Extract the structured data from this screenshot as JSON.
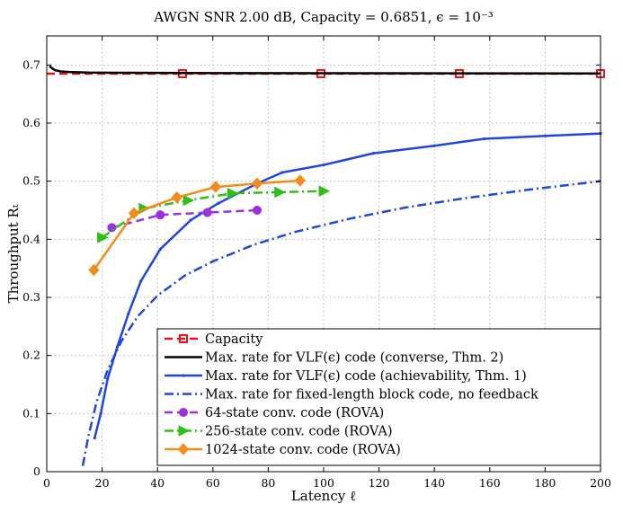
{
  "chart_data": {
    "type": "line",
    "title": "AWGN SNR 2.00 dB, Capacity = 0.6851, ϵ = 10⁻³",
    "xlabel": "Latency ℓ",
    "ylabel": "Throughput Rₜ",
    "xlim": [
      0,
      200
    ],
    "ylim": [
      0,
      0.75
    ],
    "xticks": [
      "0",
      "20",
      "40",
      "60",
      "80",
      "100",
      "120",
      "140",
      "160",
      "180",
      "200"
    ],
    "yticks": [
      "0",
      "0.1",
      "0.2",
      "0.3",
      "0.4",
      "0.5",
      "0.6",
      "0.7"
    ],
    "grid": true,
    "legend_position": "bottom-right",
    "series": [
      {
        "name": "Capacity",
        "color": "#e8141b",
        "style": "dashed",
        "marker": "square",
        "x": [
          0,
          49,
          99,
          149,
          200
        ],
        "y": [
          0.6851,
          0.6851,
          0.6851,
          0.6851,
          0.6851
        ],
        "marker_x": [
          49,
          99,
          149,
          200
        ]
      },
      {
        "name": "Max. rate for VLF(ϵ) code (converse, Thm. 2)",
        "color": "#000000",
        "style": "solid",
        "marker": "none",
        "x": [
          1,
          2,
          3,
          5,
          8,
          15,
          30,
          60,
          100,
          150,
          200
        ],
        "y": [
          0.698,
          0.694,
          0.691,
          0.689,
          0.688,
          0.687,
          0.6865,
          0.686,
          0.6858,
          0.6856,
          0.6855
        ]
      },
      {
        "name": "Max. rate for VLF(ϵ) code (achievability, Thm. 1)",
        "color": "#1f47e0",
        "style": "solid",
        "marker": "dot",
        "x": [
          17.3,
          19.5,
          22,
          25.5,
          29.5,
          34,
          41,
          52,
          62,
          76,
          85,
          100,
          118,
          140,
          158,
          180,
          200
        ],
        "y": [
          0.058,
          0.1,
          0.16,
          0.215,
          0.272,
          0.328,
          0.383,
          0.433,
          0.462,
          0.496,
          0.515,
          0.528,
          0.548,
          0.561,
          0.573,
          0.578,
          0.582
        ]
      },
      {
        "name": "Max. rate for fixed-length block code, no feedback",
        "color": "#1f47e0",
        "style": "dashdot",
        "marker": "none",
        "x": [
          13,
          15,
          18,
          22,
          27,
          33,
          40,
          50,
          60,
          75,
          90,
          110,
          130,
          150,
          175,
          200
        ],
        "y": [
          0.01,
          0.06,
          0.12,
          0.175,
          0.225,
          0.268,
          0.303,
          0.338,
          0.362,
          0.391,
          0.413,
          0.436,
          0.455,
          0.47,
          0.486,
          0.5
        ]
      },
      {
        "name": "64-state conv. code (ROVA)",
        "color": "#9b30e3",
        "style": "dashed",
        "marker": "circle",
        "x": [
          23.5,
          41,
          58,
          76
        ],
        "y": [
          0.42,
          0.442,
          0.446,
          0.45
        ]
      },
      {
        "name": "256-state conv. code (ROVA)",
        "color": "#2fbf16",
        "style": "dashdot",
        "marker": "triangle-right",
        "x": [
          20,
          35,
          51,
          67,
          84,
          100
        ],
        "y": [
          0.403,
          0.453,
          0.467,
          0.479,
          0.481,
          0.483
        ]
      },
      {
        "name": "1024-state conv. code (ROVA)",
        "color": "#f28c1c",
        "style": "solid",
        "marker": "diamond",
        "x": [
          17,
          31.5,
          47,
          61,
          76,
          91.5
        ],
        "y": [
          0.347,
          0.445,
          0.472,
          0.49,
          0.496,
          0.501
        ]
      }
    ]
  }
}
